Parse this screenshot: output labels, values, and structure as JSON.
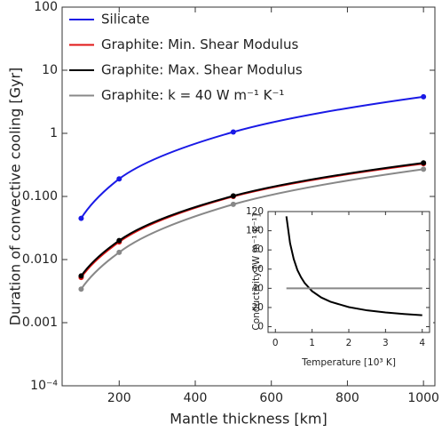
{
  "chart_data": [
    {
      "type": "line",
      "log_y": true,
      "x_label": "Mantle thickness [km]",
      "y_label": "Duration of convective cooling [Gyr]",
      "x": [
        100,
        200,
        500,
        1000
      ],
      "series": [
        {
          "name": "Silicate",
          "color": "#1a1ae6",
          "values": [
            0.045,
            0.19,
            1.05,
            3.8
          ]
        },
        {
          "name": "Graphite: Min. Shear Modulus",
          "color": "#e01515",
          "values": [
            0.0052,
            0.019,
            0.1,
            0.33
          ]
        },
        {
          "name": "Graphite: Max. Shear Modulus",
          "color": "#000000",
          "values": [
            0.0055,
            0.02,
            0.102,
            0.34
          ]
        },
        {
          "name": "Graphite: k = 40 W m⁻¹ K⁻¹",
          "color": "#888888",
          "values": [
            0.0034,
            0.013,
            0.075,
            0.27
          ]
        }
      ],
      "xlim": [
        50,
        1030
      ],
      "xticks": [
        200,
        400,
        600,
        800,
        1000
      ],
      "ylim": [
        0.0001,
        100
      ],
      "yticks": [
        {
          "value": 0.0001,
          "label": "10⁻⁴"
        },
        0.001,
        {
          "value": 0.01,
          "label": "0.010"
        },
        {
          "value": 0.1,
          "label": "0.100"
        },
        1,
        10,
        100
      ],
      "legend": "top-left"
    },
    {
      "type": "line",
      "log_y": false,
      "x_label": "Temperature [10³ K]",
      "y_label": "Conductivity [W m⁻¹ K⁻¹]",
      "x": [
        0.3,
        0.4,
        0.5,
        0.6,
        0.7,
        0.8,
        1,
        1.25,
        1.5,
        2,
        2.5,
        3,
        3.5,
        4
      ],
      "series": [
        {
          "color": "#000000",
          "values": [
            115,
            87,
            70.5,
            59,
            51.4,
            45.4,
            37,
            30.4,
            26,
            20.4,
            17,
            14.8,
            13.2,
            12
          ]
        },
        {
          "color": "#888888",
          "values": [
            40,
            40,
            40,
            40,
            40,
            40,
            40,
            40,
            40,
            40,
            40,
            40,
            40,
            40
          ]
        }
      ],
      "xlim": [
        -0.2,
        4.2
      ],
      "xticks": [
        0,
        1,
        2,
        3,
        4
      ],
      "ylim": [
        -6,
        120
      ],
      "yticks": [
        0,
        20,
        40,
        60,
        80,
        100,
        120
      ]
    }
  ]
}
